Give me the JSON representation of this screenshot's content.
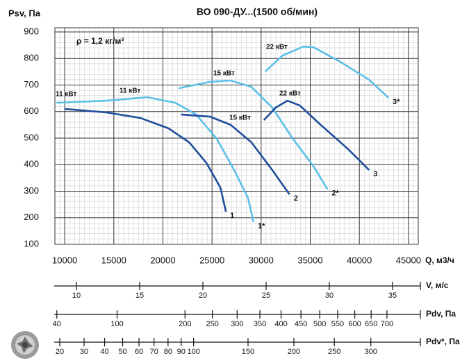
{
  "chart_data": {
    "type": "line",
    "title": "ВО 090-ДУ...(1500 об/мин)",
    "ylabel": "Psv, Па",
    "xlabel": "Q, м3/ч",
    "xlim": [
      9000,
      46000
    ],
    "xticks": [
      10000,
      15000,
      20000,
      25000,
      30000,
      35000,
      40000,
      45000
    ],
    "ylim": [
      100,
      900
    ],
    "yticks": [
      100,
      200,
      300,
      400,
      500,
      600,
      700,
      800,
      900
    ],
    "grid": true,
    "annotations": [
      "ρ = 1,2 кг/м³",
      "11 кВт",
      "11 кВт",
      "15 кВт",
      "15 кВт",
      "22 кВт",
      "22 кВт"
    ],
    "series": [
      {
        "name": "1",
        "color": "#1f4e9c",
        "label_color": "#000000",
        "x": [
          10000,
          14200,
          17700,
          20560,
          22680,
          24440,
          25850,
          26410
        ],
        "values": [
          610,
          597,
          576,
          537,
          484,
          406,
          314,
          223
        ]
      },
      {
        "name": "1*",
        "color": "#5bc0e8",
        "label_color": "#e0201c",
        "x": [
          9150,
          14200,
          18450,
          21270,
          23380,
          25490,
          27250,
          28660,
          29230
        ],
        "values": [
          633,
          641,
          654,
          633,
          589,
          497,
          380,
          275,
          184
        ]
      },
      {
        "name": "2",
        "color": "#1f4e9c",
        "label_color": "#000000",
        "x": [
          21830,
          24790,
          26900,
          29010,
          31130,
          32890
        ],
        "values": [
          589,
          581,
          550,
          484,
          380,
          288
        ]
      },
      {
        "name": "2*",
        "color": "#5bc0e8",
        "label_color": "#e0201c",
        "x": [
          21620,
          24790,
          26900,
          29010,
          31130,
          33240,
          35350,
          36760
        ],
        "values": [
          688,
          712,
          717,
          693,
          615,
          497,
          393,
          307
        ]
      },
      {
        "name": "3",
        "color": "#1f4e9c",
        "label_color": "#000000",
        "x": [
          30280,
          31480,
          32680,
          33940,
          36060,
          38870,
          40990
        ],
        "values": [
          568,
          615,
          641,
          623,
          550,
          458,
          380
        ]
      },
      {
        "name": "3*",
        "color": "#5bc0e8",
        "label_color": "#e0201c",
        "x": [
          30420,
          32180,
          34300,
          35350,
          38170,
          40990,
          42960
        ],
        "values": [
          751,
          811,
          845,
          842,
          785,
          720,
          652
        ]
      }
    ],
    "scales": [
      {
        "label": "V, м/с",
        "scale": "linear",
        "lim": [
          8.24,
          37.2
        ],
        "ticks": [
          10,
          15,
          20,
          25,
          30,
          35
        ]
      },
      {
        "label": "Pdv, Па",
        "scale": "sqrt",
        "lim": [
          38,
          812
        ],
        "ticks": [
          40,
          100,
          200,
          250,
          300,
          350,
          400,
          450,
          500,
          550,
          600,
          650,
          700
        ]
      },
      {
        "label": "Pdv*, Па",
        "scale": "sqrt",
        "lim": [
          18,
          375
        ],
        "ticks": [
          20,
          30,
          40,
          50,
          60,
          70,
          80,
          90,
          100,
          150,
          200,
          250,
          300
        ]
      }
    ]
  }
}
